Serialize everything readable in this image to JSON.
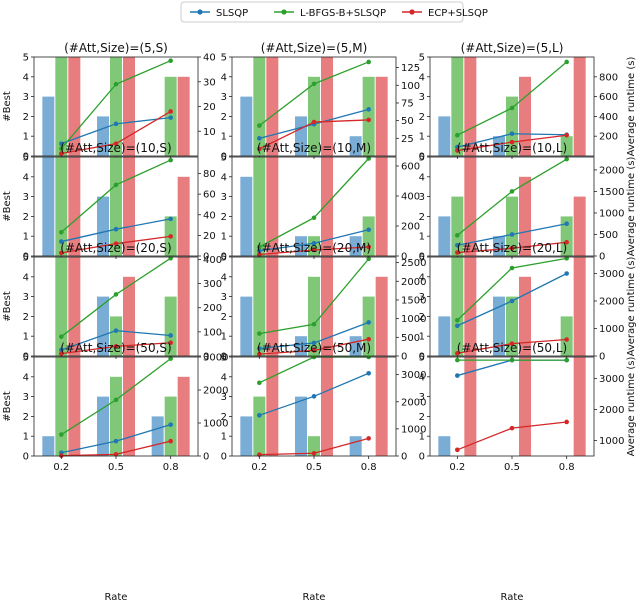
{
  "legend": {
    "items": [
      {
        "label": "SLSQP",
        "color": "#1f77b4"
      },
      {
        "label": "L-BFGS-B+SLSQP",
        "color": "#2ca02c"
      },
      {
        "label": "ECP+SLSQP",
        "color": "#d62728"
      }
    ]
  },
  "colors": {
    "bar": [
      "#7aadd6",
      "#80c878",
      "#e87d7f"
    ],
    "line": [
      "#1f77b4",
      "#2ca02c",
      "#d62728"
    ]
  },
  "axes_labels": {
    "left": "#Best",
    "right": "Average runtime (s)",
    "bottom": "Rate"
  },
  "chart_data": [
    {
      "type": "bar+line",
      "title": "(#Att,Size)=(5,S)",
      "categories": [
        "0.2",
        "0.5",
        "0.8"
      ],
      "bars": [
        [
          3,
          2,
          0
        ],
        [
          5,
          5,
          4
        ],
        [
          5,
          5,
          4
        ]
      ],
      "bar_ylim": [
        0,
        5
      ],
      "bar_yticks": [
        0,
        1,
        2,
        3,
        4,
        5
      ],
      "runtime": [
        [
          5,
          13,
          15.5
        ],
        [
          3,
          29,
          38.5
        ],
        [
          1,
          5,
          18
        ]
      ],
      "runtime_ylim": [
        0,
        40
      ],
      "runtime_yticks": [
        10,
        20,
        30,
        40
      ]
    },
    {
      "type": "bar+line",
      "title": "(#Att,Size)=(5,M)",
      "categories": [
        "0.2",
        "0.5",
        "0.8"
      ],
      "bars": [
        [
          3,
          2,
          1
        ],
        [
          5,
          4,
          4
        ],
        [
          5,
          5,
          4
        ]
      ],
      "bar_ylim": [
        0,
        5
      ],
      "bar_yticks": [
        0,
        1,
        2,
        3,
        4,
        5
      ],
      "runtime": [
        [
          25,
          45,
          66
        ],
        [
          43,
          102,
          133
        ],
        [
          10,
          48,
          51
        ]
      ],
      "runtime_ylim": [
        0,
        140
      ],
      "runtime_yticks": [
        25,
        50,
        75,
        100,
        125
      ]
    },
    {
      "type": "bar+line",
      "title": "(#Att,Size)=(5,L)",
      "categories": [
        "0.2",
        "0.5",
        "0.8"
      ],
      "bars": [
        [
          2,
          1,
          0
        ],
        [
          5,
          3,
          1
        ],
        [
          5,
          4,
          5
        ]
      ],
      "bar_ylim": [
        0,
        5
      ],
      "bar_yticks": [
        0,
        1,
        2,
        3,
        4,
        5
      ],
      "runtime": [
        [
          90,
          225,
          215
        ],
        [
          210,
          485,
          950
        ],
        [
          55,
          140,
          210
        ]
      ],
      "runtime_ylim": [
        0,
        1000
      ],
      "runtime_yticks": [
        200,
        400,
        600,
        800
      ]
    },
    {
      "type": "bar+line",
      "title": "(#Att,Size)=(10,S)",
      "categories": [
        "0.2",
        "0.5",
        "0.8"
      ],
      "bars": [
        [
          5,
          3,
          0
        ],
        [
          5,
          5,
          2
        ],
        [
          5,
          5,
          4
        ]
      ],
      "bar_ylim": [
        0,
        5
      ],
      "bar_yticks": [
        0,
        1,
        2,
        3,
        4,
        5
      ],
      "runtime": [
        [
          14,
          26,
          36
        ],
        [
          23,
          69,
          93
        ],
        [
          3,
          12,
          19
        ]
      ],
      "runtime_ylim": [
        0,
        96
      ],
      "runtime_yticks": [
        0,
        20,
        40,
        60,
        80
      ]
    },
    {
      "type": "bar+line",
      "title": "(#Att,Size)=(10,M)",
      "categories": [
        "0.2",
        "0.5",
        "0.8"
      ],
      "bars": [
        [
          4,
          1,
          1
        ],
        [
          5,
          1,
          2
        ],
        [
          5,
          5,
          5
        ]
      ],
      "bar_ylim": [
        0,
        5
      ],
      "bar_yticks": [
        0,
        1,
        2,
        3,
        4,
        5
      ],
      "runtime": [
        [
          35,
          85,
          175
        ],
        [
          60,
          255,
          650
        ],
        [
          10,
          40,
          60
        ]
      ],
      "runtime_ylim": [
        0,
        660
      ],
      "runtime_yticks": [
        0,
        200,
        400,
        600
      ]
    },
    {
      "type": "bar+line",
      "title": "(#Att,Size)=(10,L)",
      "categories": [
        "0.2",
        "0.5",
        "0.8"
      ],
      "bars": [
        [
          2,
          1,
          0
        ],
        [
          3,
          3,
          2
        ],
        [
          5,
          4,
          3
        ]
      ],
      "bar_ylim": [
        0,
        5
      ],
      "bar_yticks": [
        0,
        1,
        2,
        3,
        4,
        5
      ],
      "runtime": [
        [
          250,
          500,
          750
        ],
        [
          480,
          1500,
          2250
        ],
        [
          80,
          180,
          320
        ]
      ],
      "runtime_ylim": [
        0,
        2300
      ],
      "runtime_yticks": [
        0,
        500,
        1000,
        1500,
        2000
      ]
    },
    {
      "type": "bar+line",
      "title": "(#Att,Size)=(20,S)",
      "categories": [
        "0.2",
        "0.5",
        "0.8"
      ],
      "bars": [
        [
          0,
          3,
          0
        ],
        [
          5,
          2,
          3
        ],
        [
          5,
          4,
          5
        ]
      ],
      "bar_ylim": [
        0,
        5
      ],
      "bar_yticks": [
        0,
        1,
        2,
        3,
        4,
        5
      ],
      "runtime": [
        [
          25,
          105,
          85
        ],
        [
          80,
          255,
          405
        ],
        [
          10,
          40,
          55
        ]
      ],
      "runtime_ylim": [
        0,
        410
      ],
      "runtime_yticks": [
        0,
        100,
        200,
        300,
        400
      ]
    },
    {
      "type": "bar+line",
      "title": "(#Att,Size)=(20,M)",
      "categories": [
        "0.2",
        "0.5",
        "0.8"
      ],
      "bars": [
        [
          3,
          1,
          1
        ],
        [
          5,
          4,
          3
        ],
        [
          5,
          5,
          4
        ]
      ],
      "bar_ylim": [
        0,
        5
      ],
      "bar_yticks": [
        0,
        1,
        2,
        3,
        4,
        5
      ],
      "runtime": [
        [
          200,
          350,
          900
        ],
        [
          600,
          850,
          2600
        ],
        [
          50,
          150,
          450
        ]
      ],
      "runtime_ylim": [
        0,
        2650
      ],
      "runtime_yticks": [
        0,
        500,
        1000,
        1500,
        2000,
        2500
      ]
    },
    {
      "type": "bar+line",
      "title": "(#Att,Size)=(20,L)",
      "categories": [
        "0.2",
        "0.5",
        "0.8"
      ],
      "bars": [
        [
          2,
          3,
          0
        ],
        [
          5,
          3,
          2
        ],
        [
          5,
          4,
          5
        ]
      ],
      "bar_ylim": [
        0,
        5
      ],
      "bar_yticks": [
        0,
        1,
        2,
        3,
        4,
        5
      ],
      "runtime": [
        [
          1100,
          2000,
          3000
        ],
        [
          1300,
          3200,
          3550
        ],
        [
          100,
          450,
          600
        ]
      ],
      "runtime_ylim": [
        0,
        3600
      ],
      "runtime_yticks": [
        0,
        1000,
        2000,
        3000
      ]
    },
    {
      "type": "bar+line",
      "title": "(#Att,Size)=(50,S)",
      "categories": [
        "0.2",
        "0.5",
        "0.8"
      ],
      "bars": [
        [
          1,
          3,
          2
        ],
        [
          5,
          4,
          3
        ],
        [
          5,
          5,
          4
        ]
      ],
      "bar_ylim": [
        0,
        5
      ],
      "bar_yticks": [
        0,
        1,
        2,
        3,
        4,
        5
      ],
      "runtime": [
        [
          100,
          450,
          950
        ],
        [
          650,
          1700,
          2950
        ],
        [
          10,
          50,
          450
        ]
      ],
      "runtime_ylim": [
        0,
        3000
      ],
      "runtime_yticks": [
        0,
        1000,
        2000,
        3000
      ]
    },
    {
      "type": "bar+line",
      "title": "(#Att,Size)=(50,M)",
      "categories": [
        "0.2",
        "0.5",
        "0.8"
      ],
      "bars": [
        [
          2,
          3,
          1
        ],
        [
          3,
          1,
          0
        ],
        [
          5,
          5,
          5
        ]
      ],
      "bar_ylim": [
        0,
        5
      ],
      "bar_yticks": [
        0,
        1,
        2,
        3,
        4,
        5
      ],
      "runtime": [
        [
          1500,
          2200,
          3050
        ],
        [
          2700,
          3650,
          3650
        ],
        [
          50,
          100,
          650
        ]
      ],
      "runtime_ylim": [
        0,
        3650
      ],
      "runtime_yticks": [
        0,
        1000,
        2000,
        3000
      ]
    },
    {
      "type": "bar+line",
      "title": "(#Att,Size)=(50,L)",
      "categories": [
        "0.2",
        "0.5",
        "0.8"
      ],
      "bars": [
        [
          1,
          0,
          0
        ],
        [
          0,
          0,
          0
        ],
        [
          5,
          5,
          5
        ]
      ],
      "bar_ylim": [
        0,
        5
      ],
      "bar_yticks": [
        0,
        1,
        2,
        3,
        4,
        5
      ],
      "runtime": [
        [
          3100,
          3600,
          3600
        ],
        [
          3600,
          3600,
          3600
        ],
        [
          700,
          1400,
          1600
        ]
      ],
      "runtime_ylim": [
        500,
        3700
      ],
      "runtime_yticks": [
        1000,
        2000,
        3000
      ]
    }
  ]
}
